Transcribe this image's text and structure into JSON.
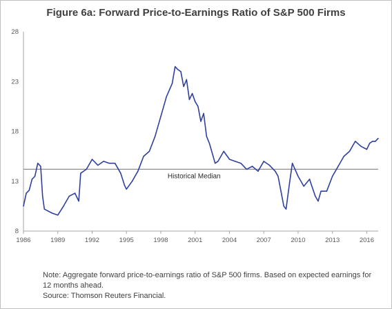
{
  "figure": {
    "title": "Figure 6a:  Forward Price-to-Earnings Ratio of S&P 500 Firms",
    "note": "Note:  Aggregate forward price-to-earnings ratio of S&P 500 firms. Based on expected earnings for 12 months ahead.",
    "source": "Source: Thomson Reuters Financial."
  },
  "chart_data": {
    "type": "line",
    "title": "Figure 6a:  Forward Price-to-Earnings Ratio of S&P 500 Firms",
    "xlabel": "",
    "ylabel": "",
    "xlim": [
      1986,
      2017
    ],
    "ylim": [
      8,
      28
    ],
    "x_ticks": [
      1986,
      1989,
      1992,
      1995,
      1998,
      2001,
      2004,
      2007,
      2010,
      2013,
      2016
    ],
    "y_ticks": [
      8,
      13,
      18,
      23,
      28
    ],
    "grid": false,
    "legend": "none",
    "line_color": "#2e3f9e",
    "reference_line": {
      "label": "Historical Median",
      "value": 14.2,
      "color": "#8c8c8c"
    },
    "series": [
      {
        "x": [
          1986.0,
          1986.25,
          1986.5,
          1986.75,
          1987.0,
          1987.25,
          1987.5,
          1987.67,
          1987.83,
          1988.0,
          1988.5,
          1989.0,
          1989.5,
          1990.0,
          1990.5,
          1990.83,
          1991.0,
          1991.5,
          1992.0,
          1992.5,
          1993.0,
          1993.5,
          1994.0,
          1994.5,
          1994.83,
          1995.0,
          1995.5,
          1996.0,
          1996.5,
          1997.0,
          1997.5,
          1998.0,
          1998.5,
          1999.0,
          1999.25,
          1999.5,
          1999.75,
          2000.0,
          2000.25,
          2000.5,
          2000.75,
          2001.0,
          2001.25,
          2001.5,
          2001.75,
          2002.0,
          2002.25,
          2002.5,
          2002.75,
          2003.0,
          2003.5,
          2004.0,
          2004.5,
          2005.0,
          2005.5,
          2006.0,
          2006.5,
          2007.0,
          2007.5,
          2008.0,
          2008.25,
          2008.5,
          2008.75,
          2008.95,
          2009.25,
          2009.5,
          2010.0,
          2010.5,
          2011.0,
          2011.5,
          2011.75,
          2012.0,
          2012.5,
          2013.0,
          2013.5,
          2014.0,
          2014.5,
          2015.0,
          2015.5,
          2016.0,
          2016.25,
          2016.5,
          2016.75,
          2017.0
        ],
        "y": [
          10.5,
          11.8,
          12.1,
          13.2,
          13.5,
          14.8,
          14.5,
          11.5,
          10.2,
          10.1,
          9.8,
          9.6,
          10.5,
          11.5,
          11.8,
          11.0,
          13.8,
          14.2,
          15.2,
          14.6,
          15.0,
          14.8,
          14.8,
          13.8,
          12.6,
          12.2,
          13.0,
          14.0,
          15.5,
          16.0,
          17.5,
          19.5,
          21.5,
          22.8,
          24.5,
          24.2,
          24.0,
          22.5,
          23.2,
          21.2,
          21.8,
          21.0,
          20.5,
          19.0,
          19.8,
          17.5,
          16.8,
          15.8,
          14.8,
          15.0,
          16.0,
          15.2,
          15.0,
          14.8,
          14.2,
          14.5,
          14.0,
          15.0,
          14.6,
          14.0,
          13.5,
          12.0,
          10.5,
          10.2,
          12.8,
          14.8,
          13.5,
          12.5,
          13.2,
          11.5,
          11.0,
          12.0,
          12.0,
          13.5,
          14.5,
          15.5,
          16.0,
          17.0,
          16.5,
          16.2,
          16.8,
          17.0,
          17.0,
          17.3
        ]
      }
    ]
  }
}
